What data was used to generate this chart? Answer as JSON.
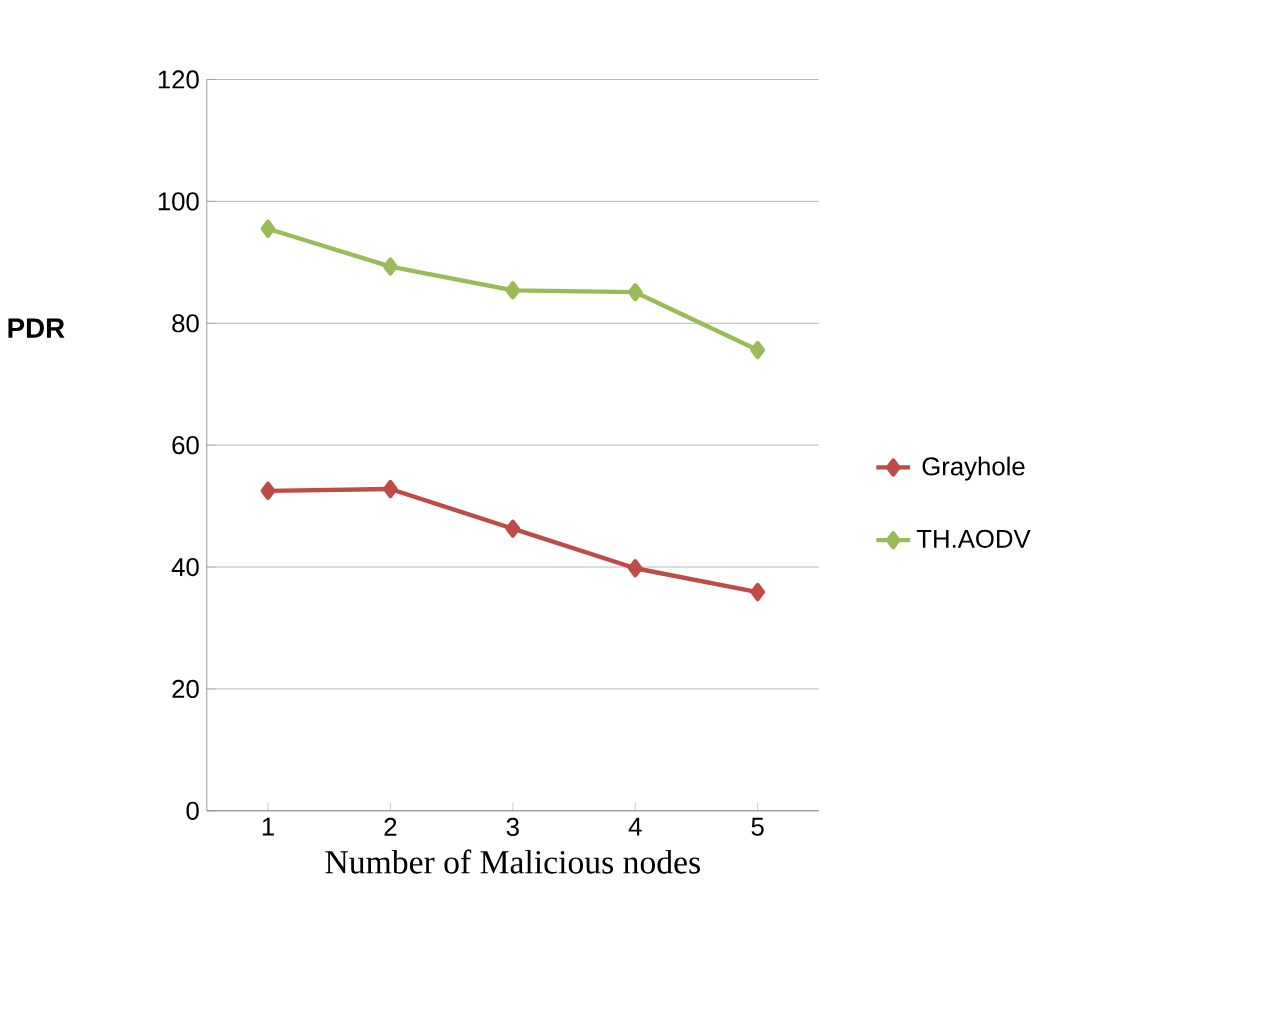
{
  "chart_data": {
    "type": "line",
    "xlabel": "Number of Malicious nodes",
    "ylabel": "PDR",
    "categories": [
      "1",
      "2",
      "3",
      "4",
      "5"
    ],
    "series": [
      {
        "name": "Grayhole",
        "color": "#be4b48",
        "values": [
          52.5,
          52.8,
          46.3,
          39.8,
          35.9
        ]
      },
      {
        "name": "TH.AODV",
        "color": "#9bbb59",
        "values": [
          95.5,
          89.3,
          85.4,
          85.1,
          75.6
        ]
      }
    ],
    "ylim": [
      0,
      120
    ],
    "yticks": [
      0,
      20,
      40,
      60,
      80,
      100,
      120
    ],
    "grid": "y",
    "legend": "right",
    "marker": "diamond",
    "line_style": "solid"
  }
}
